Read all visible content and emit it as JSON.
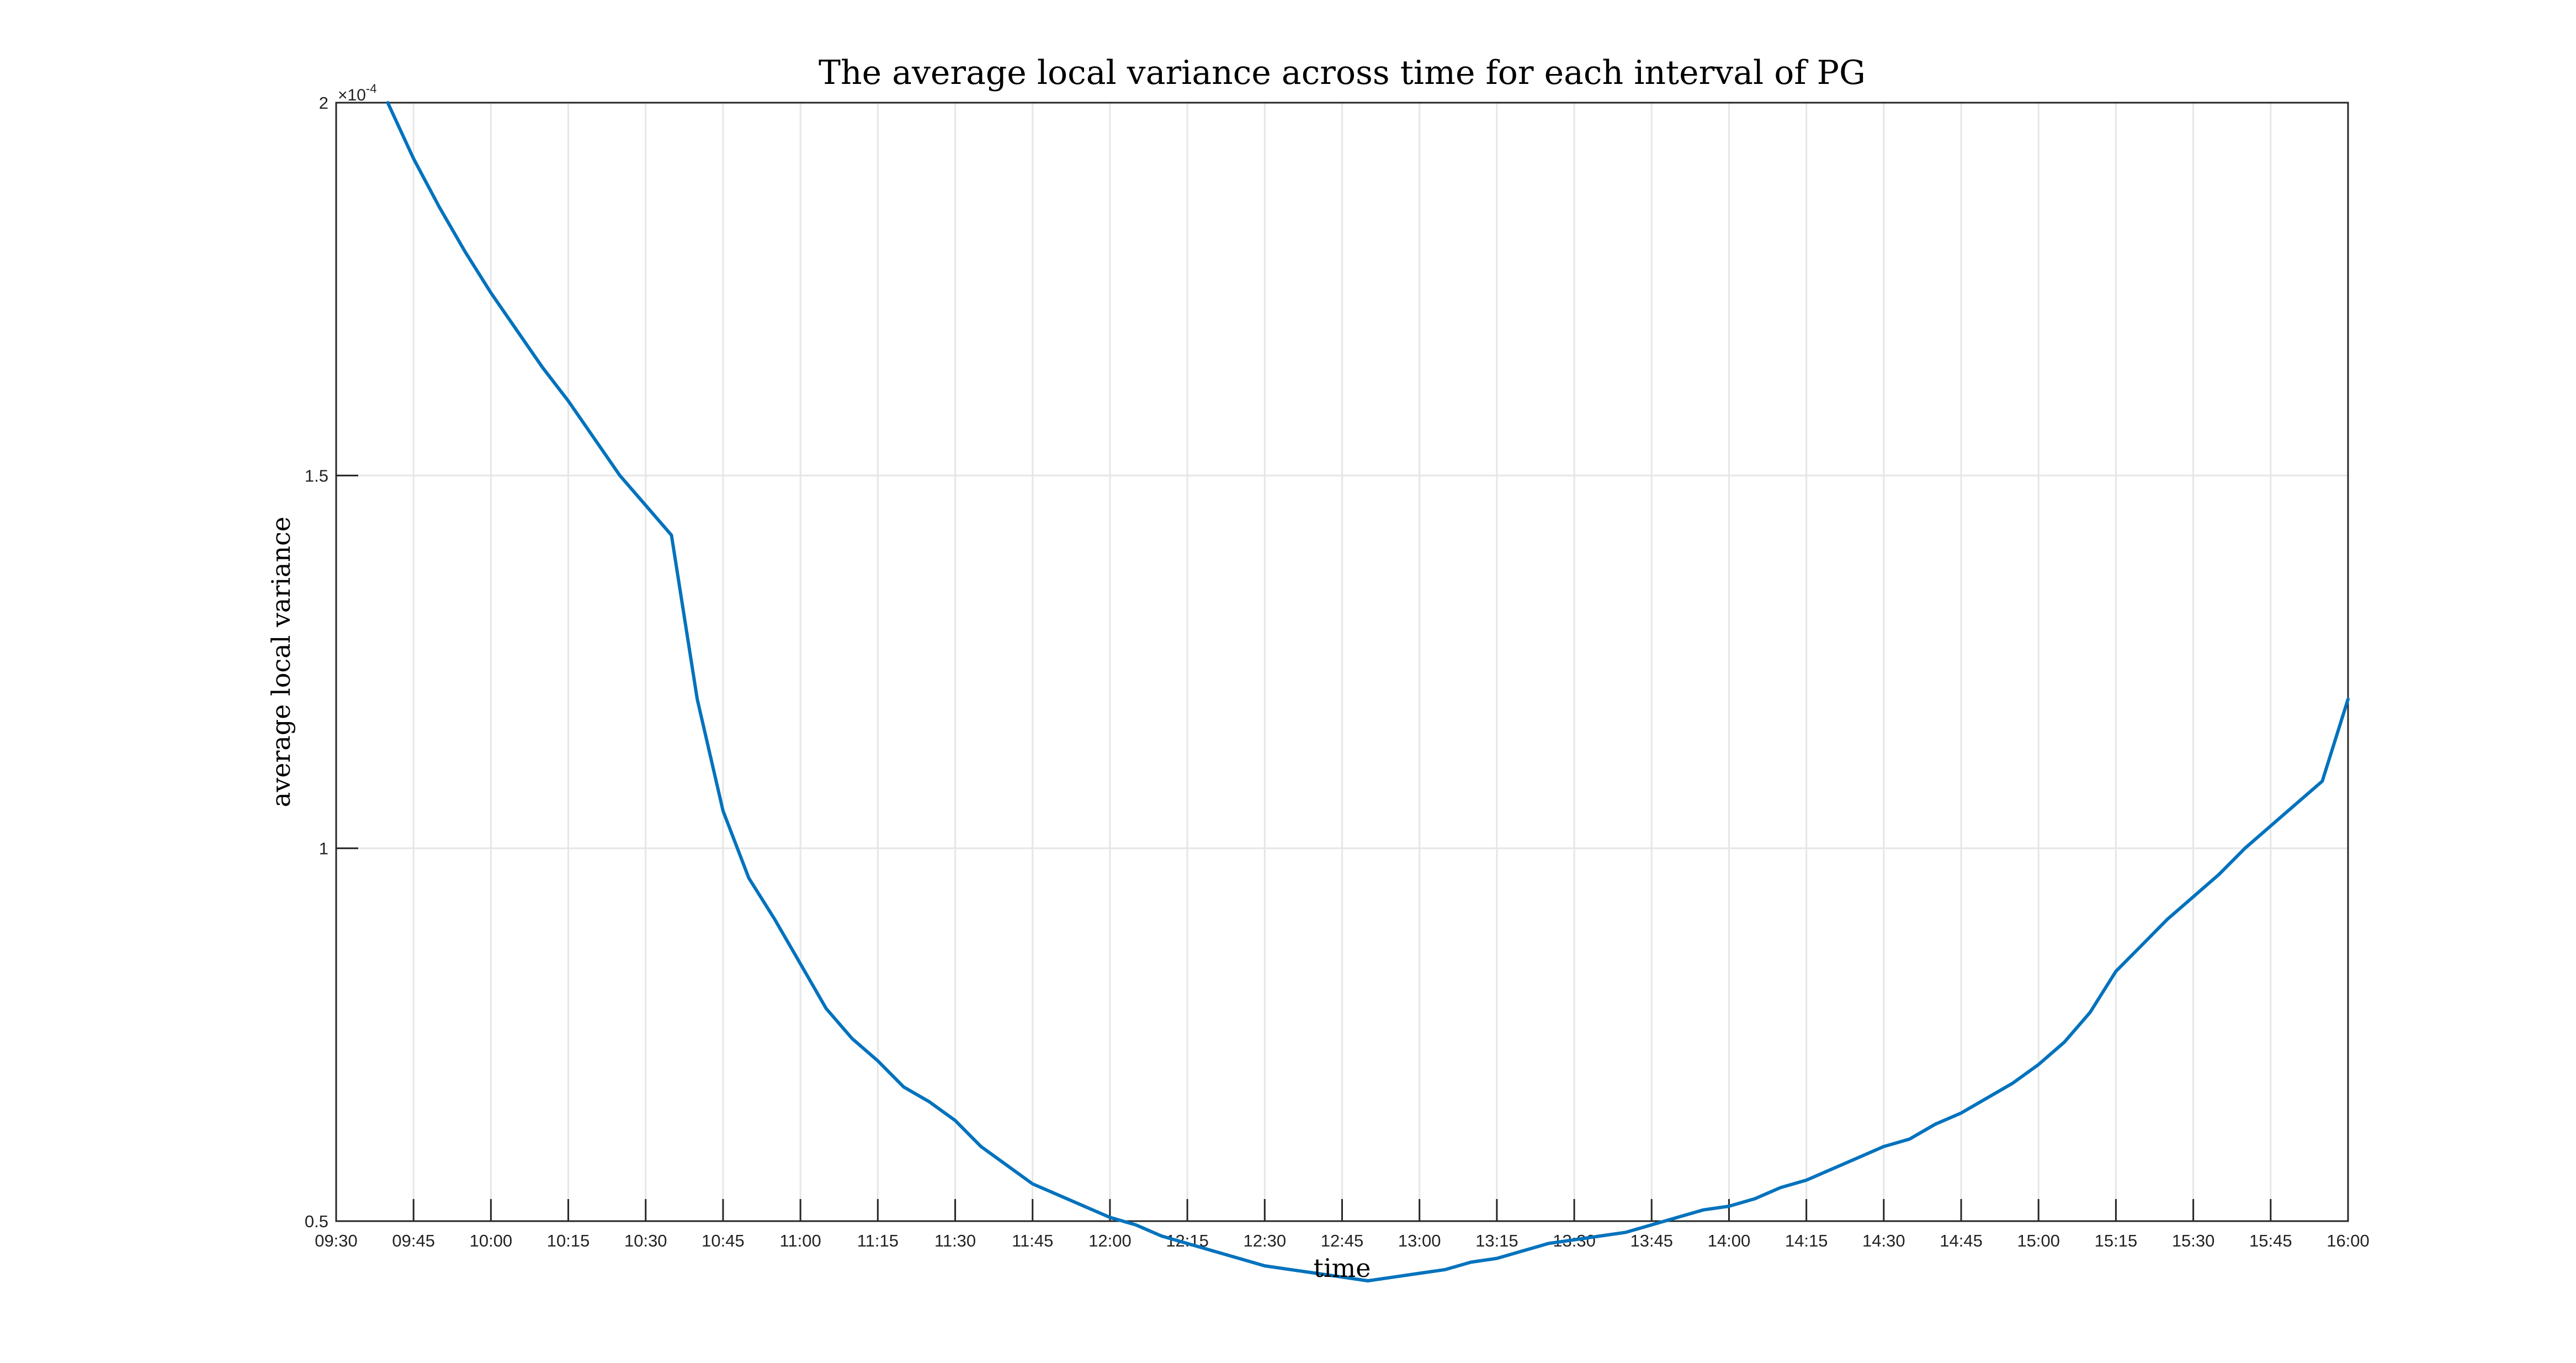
{
  "chart_data": {
    "type": "line",
    "title": "The average local variance across time for each interval of PG",
    "xlabel": "time",
    "ylabel": "average local variance",
    "y_exponent_label": "×10",
    "y_exponent_power": "-4",
    "ylim": [
      0.5,
      2.0
    ],
    "y_ticks": [
      0.5,
      1.0,
      1.5,
      2.0
    ],
    "y_tick_labels": [
      "0.5",
      "1",
      "1.5",
      "2"
    ],
    "xlim": [
      "09:30",
      "16:00"
    ],
    "x_tick_labels": [
      "09:30",
      "09:45",
      "10:00",
      "10:15",
      "10:30",
      "10:45",
      "11:00",
      "11:15",
      "11:30",
      "11:45",
      "12:00",
      "12:15",
      "12:30",
      "12:45",
      "13:00",
      "13:15",
      "13:30",
      "13:45",
      "14:00",
      "14:15",
      "14:30",
      "14:45",
      "15:00",
      "15:15",
      "15:30",
      "15:45",
      "16:00"
    ],
    "grid": true,
    "line_color": "#0072BD",
    "series": [
      {
        "x": [
          "09:40",
          "09:45",
          "09:50",
          "09:55",
          "10:00",
          "10:05",
          "10:10",
          "10:15",
          "10:20",
          "10:25",
          "10:30",
          "10:35",
          "10:40",
          "10:45",
          "10:50",
          "10:55",
          "11:00",
          "11:05",
          "11:10",
          "11:15",
          "11:20",
          "11:25",
          "11:30",
          "11:35",
          "11:40",
          "11:45",
          "11:50",
          "11:55",
          "12:00",
          "12:05",
          "12:10",
          "12:15",
          "12:20",
          "12:25",
          "12:30",
          "12:35",
          "12:40",
          "12:45",
          "12:50",
          "12:55",
          "13:00",
          "13:05",
          "13:10",
          "13:15",
          "13:20",
          "13:25",
          "13:30",
          "13:35",
          "13:40",
          "13:45",
          "13:50",
          "13:55",
          "14:00",
          "14:05",
          "14:10",
          "14:15",
          "14:20",
          "14:25",
          "14:30",
          "14:35",
          "14:40",
          "14:45",
          "14:50",
          "14:55",
          "15:00",
          "15:05",
          "15:10",
          "15:15",
          "15:20",
          "15:25",
          "15:30",
          "15:35",
          "15:40",
          "15:45",
          "15:50",
          "15:55",
          "16:00"
        ],
        "values": [
          2.0,
          1.925,
          1.86,
          1.8,
          1.745,
          1.695,
          1.645,
          1.6,
          1.55,
          1.5,
          1.46,
          1.42,
          1.2,
          1.05,
          0.96,
          0.905,
          0.845,
          0.785,
          0.745,
          0.715,
          0.68,
          0.66,
          0.635,
          0.6,
          0.575,
          0.55,
          0.535,
          0.52,
          0.505,
          0.495,
          0.48,
          0.47,
          0.46,
          0.45,
          0.44,
          0.435,
          0.43,
          0.425,
          0.42,
          0.425,
          0.43,
          0.435,
          0.445,
          0.45,
          0.46,
          0.47,
          0.475,
          0.48,
          0.485,
          0.495,
          0.505,
          0.515,
          0.52,
          0.53,
          0.545,
          0.555,
          0.57,
          0.585,
          0.6,
          0.61,
          0.63,
          0.645,
          0.665,
          0.685,
          0.71,
          0.74,
          0.78,
          0.835,
          0.87,
          0.905,
          0.935,
          0.965,
          1.0,
          1.03,
          1.06,
          1.09,
          1.2
        ]
      }
    ]
  }
}
